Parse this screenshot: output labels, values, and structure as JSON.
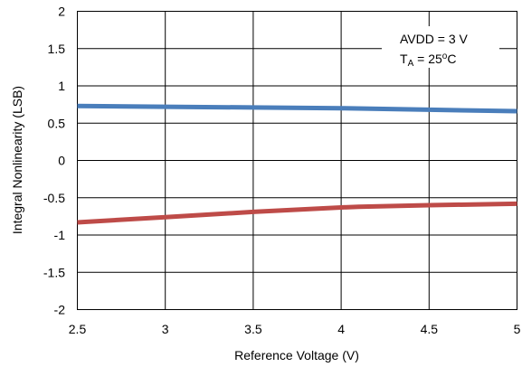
{
  "chart_data": {
    "type": "line",
    "xlabel": "Reference Voltage (V)",
    "ylabel": "Integral Nonlinearity (LSB)",
    "xlim": [
      2.5,
      5
    ],
    "ylim": [
      -2,
      2
    ],
    "x_ticks": [
      "2.5",
      "3",
      "3.5",
      "4",
      "4.5",
      "5"
    ],
    "y_ticks": [
      "2",
      "1.5",
      "1",
      "0.5",
      "0",
      "-0.5",
      "-1",
      "-1.5",
      "-2"
    ],
    "grid": true,
    "series": [
      {
        "color": "#4a7ebb",
        "x": [
          2.5,
          3.0,
          3.5,
          4.0,
          4.5,
          5.0
        ],
        "y": [
          0.73,
          0.72,
          0.71,
          0.7,
          0.68,
          0.66
        ]
      },
      {
        "color": "#be4b48",
        "x": [
          2.5,
          3.0,
          3.5,
          4.0,
          4.1,
          4.5,
          5.0
        ],
        "y": [
          -0.83,
          -0.76,
          -0.69,
          -0.63,
          -0.62,
          -0.6,
          -0.58
        ]
      }
    ],
    "annotation": {
      "line1": "AVDD = 3 V",
      "t_main": "T",
      "t_sub": "A",
      "t_eq": " = 25",
      "t_sup": "o",
      "t_unit": "C"
    }
  }
}
